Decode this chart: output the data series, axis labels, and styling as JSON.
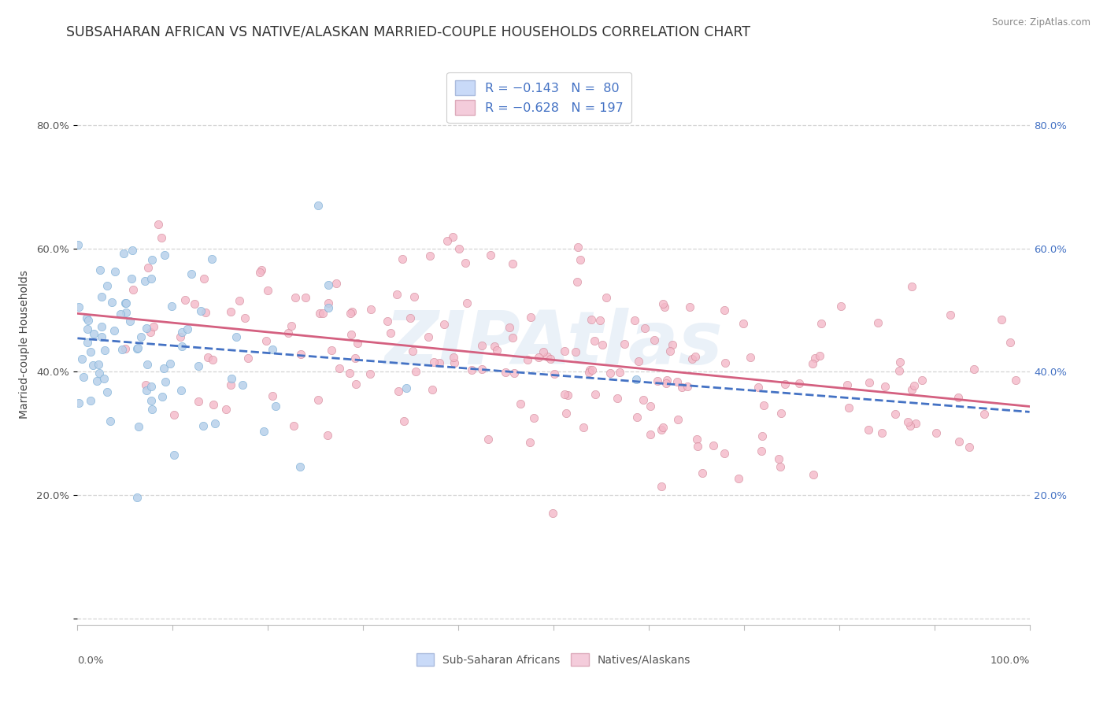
{
  "title": "SUBSAHARAN AFRICAN VS NATIVE/ALASKAN MARRIED-COUPLE HOUSEHOLDS CORRELATION CHART",
  "source": "Source: ZipAtlas.com",
  "ylabel": "Married-couple Households",
  "label_sub": "Sub-Saharan Africans",
  "label_native": "Natives/Alaskans",
  "blue_scatter_fill": "#b8d0ea",
  "blue_scatter_edge": "#7aaed6",
  "blue_line_color": "#4472c4",
  "pink_scatter_fill": "#f4b8c8",
  "pink_scatter_edge": "#d08898",
  "pink_line_color": "#d46080",
  "legend_blue_fill": "#c9daf8",
  "legend_pink_fill": "#f4ccdb",
  "legend_text_color": "#4472c4",
  "grid_color": "#d5d5d5",
  "title_color": "#333333",
  "source_color": "#888888",
  "left_tick_color": "#555555",
  "right_tick_color": "#4472c4",
  "watermark_color": "#dde8f4",
  "watermark_text": "ZIPAtlas",
  "blue_N": 80,
  "pink_N": 197,
  "blue_R_label": "-0.143",
  "pink_R_label": "-0.628",
  "blue_intercept": 0.455,
  "blue_slope": -0.04,
  "pink_intercept": 0.495,
  "pink_slope": -0.16,
  "seed_blue": 12,
  "seed_pink": 37
}
